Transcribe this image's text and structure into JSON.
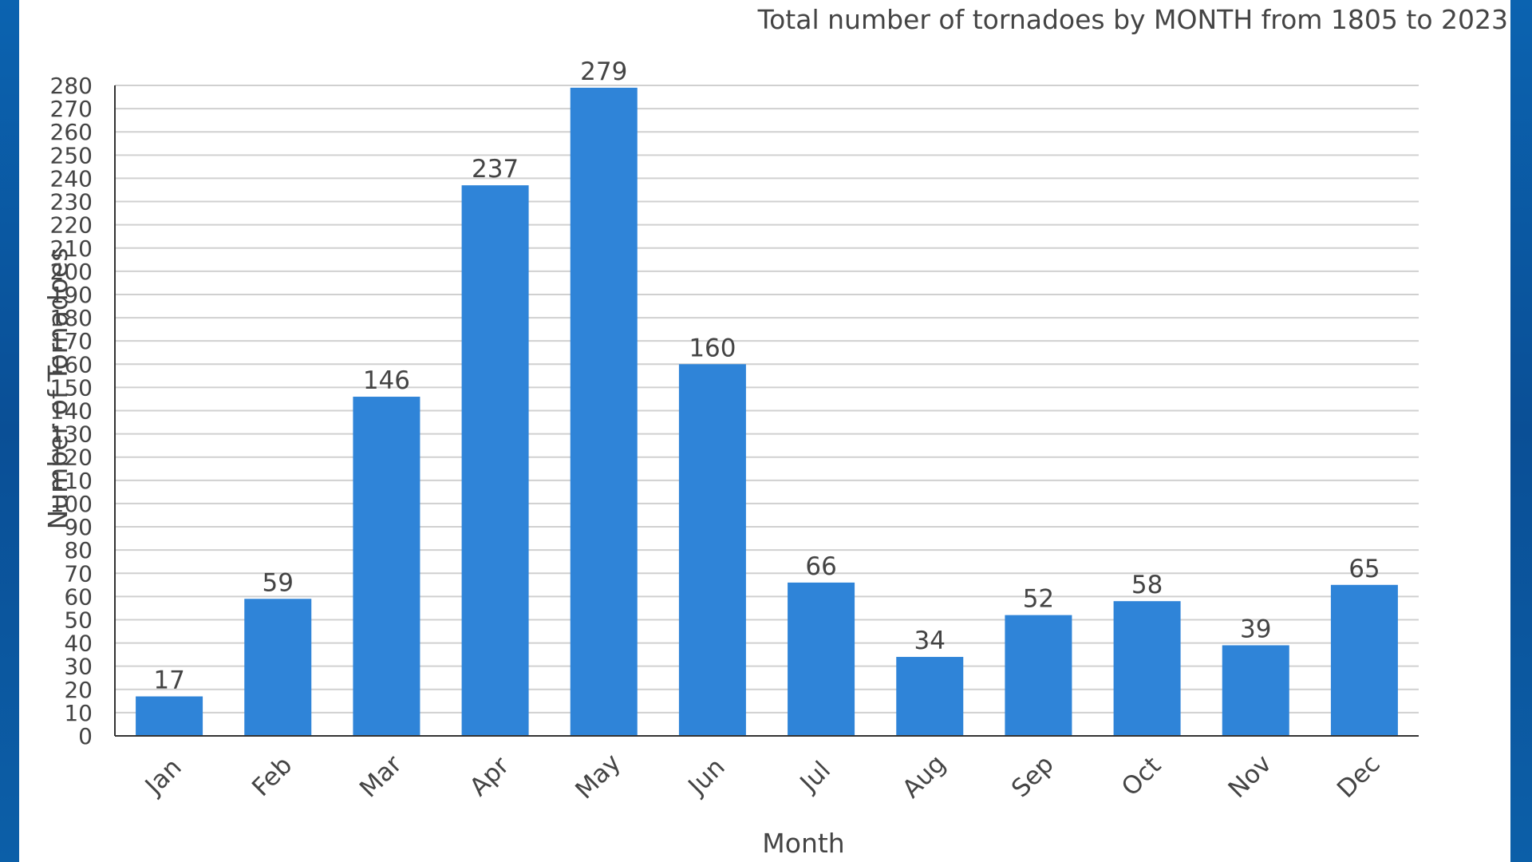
{
  "colors": {
    "bar": "#2f84d8",
    "grid": "#d0d0d0",
    "axis": "#333333",
    "text": "#444444",
    "frame": "#0f5fa8"
  },
  "chart_data": {
    "type": "bar",
    "title": "Total number of tornadoes by MONTH from 1805 to 2023",
    "xlabel": "Month",
    "ylabel": "Number of Tornadoes",
    "categories": [
      "Jan",
      "Feb",
      "Mar",
      "Apr",
      "May",
      "Jun",
      "Jul",
      "Aug",
      "Sep",
      "Oct",
      "Nov",
      "Dec"
    ],
    "values": [
      17,
      59,
      146,
      237,
      279,
      160,
      66,
      34,
      52,
      58,
      39,
      65
    ],
    "ylim": [
      0,
      280
    ],
    "yticks": [
      0,
      10,
      20,
      30,
      40,
      50,
      60,
      70,
      80,
      90,
      100,
      110,
      120,
      130,
      140,
      150,
      160,
      170,
      180,
      190,
      200,
      210,
      220,
      230,
      240,
      250,
      260,
      270,
      280
    ],
    "grid": true,
    "legend": "none",
    "data_labels": true
  }
}
